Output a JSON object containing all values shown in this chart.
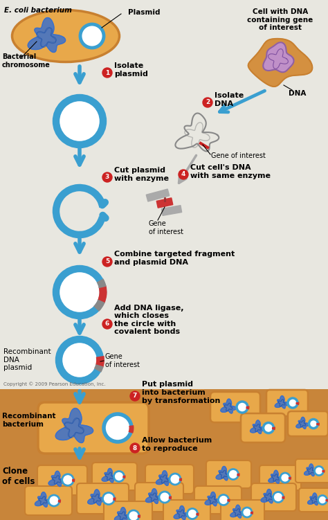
{
  "bg_color_top": "#e8e7e0",
  "bg_color_bottom": "#c8853a",
  "blue_color": "#3a9fd0",
  "blue_dark": "#2277aa",
  "orange_face": "#e8a84a",
  "orange_edge": "#c88030",
  "orange_face2": "#d49040",
  "red_color": "#cc2222",
  "gray_color": "#999999",
  "purple_color": "#c090c8",
  "purple_edge": "#9060a0",
  "white": "#ffffff",
  "black": "#000000",
  "ecoli_label": "E. coli bacterium",
  "plasmid_label": "Plasmid",
  "bact_chrom_label": "Bacterial\nchromosome",
  "cell_dna_label": "Cell with DNA\ncontaining gene\nof interest",
  "dna_label": "DNA",
  "step1_text": "Isolate\nplasmid",
  "step2_text": "Isolate\nDNA",
  "step3_text": "Cut plasmid\nwith enzyme",
  "step4_text": "Cut cell's DNA\nwith same enzyme",
  "step5_text": "Combine targeted fragment\nand plasmid DNA",
  "step6_text": "Add DNA ligase,\nwhich closes\nthe circle with\ncovalent bonds",
  "step7_text": "Put plasmid\ninto bacterium\nby transformation",
  "step8_text": "Allow bacterium\nto reproduce",
  "recomb_dna_label": "Recombinant\nDNA\nplasmid",
  "recomb_bact_label": "Recombinant\nbacterium",
  "clone_label": "Clone\nof cells",
  "gene_interest": "Gene of interest",
  "gene_interest2": "Gene\nof interest",
  "copyright": "Copyright © 2009 Pearson Education, Inc."
}
